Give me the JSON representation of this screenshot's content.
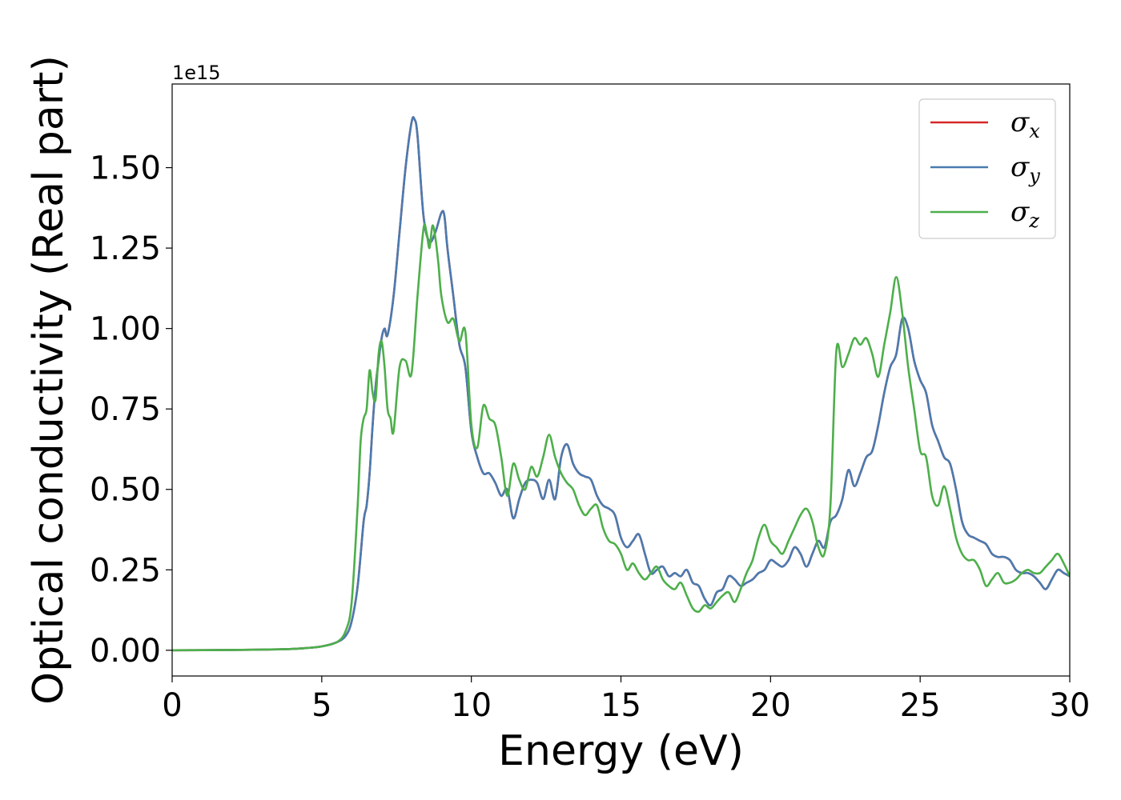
{
  "chart_data": {
    "type": "line",
    "title": "",
    "xlabel": "Energy (eV)",
    "ylabel": "Optical conductivity (Real part)",
    "offset_text": "1e15",
    "xlim": [
      0,
      30
    ],
    "ylim": [
      -0.08,
      1.76
    ],
    "x_ticks": [
      0,
      5,
      10,
      15,
      20,
      25,
      30
    ],
    "x_tick_labels": [
      "0",
      "5",
      "10",
      "15",
      "20",
      "25",
      "30"
    ],
    "y_ticks": [
      0,
      0.25,
      0.5,
      0.75,
      1.0,
      1.25,
      1.5
    ],
    "y_tick_labels": [
      "0.00",
      "0.25",
      "0.50",
      "0.75",
      "1.00",
      "1.25",
      "1.50"
    ],
    "grid": false,
    "legend_position": "top-right",
    "series": [
      {
        "name": "σ_x",
        "label_main": "σ",
        "label_sub": "x",
        "color": "#d62728",
        "x": [
          0,
          2,
          3,
          4,
          4.5,
          5,
          5.5,
          5.8,
          6,
          6.2,
          6.4,
          6.5,
          6.6,
          6.7,
          6.8,
          6.9,
          7.0,
          7.1,
          7.2,
          7.4,
          7.6,
          7.8,
          8.0,
          8.1,
          8.2,
          8.4,
          8.6,
          8.8,
          9.0,
          9.1,
          9.2,
          9.4,
          9.6,
          9.8,
          10.0,
          10.2,
          10.4,
          10.6,
          10.8,
          11.0,
          11.2,
          11.4,
          11.6,
          11.8,
          12.0,
          12.2,
          12.4,
          12.6,
          12.8,
          13.0,
          13.2,
          13.4,
          13.6,
          13.8,
          14.0,
          14.2,
          14.4,
          14.6,
          14.8,
          15.0,
          15.2,
          15.4,
          15.6,
          15.8,
          16.0,
          16.2,
          16.4,
          16.6,
          16.8,
          17.0,
          17.2,
          17.4,
          17.6,
          17.8,
          18.0,
          18.2,
          18.4,
          18.6,
          18.8,
          19.0,
          19.2,
          19.4,
          19.6,
          19.8,
          20.0,
          20.2,
          20.4,
          20.6,
          20.8,
          21.0,
          21.2,
          21.4,
          21.6,
          21.8,
          22.0,
          22.2,
          22.4,
          22.6,
          22.8,
          23.0,
          23.2,
          23.4,
          23.6,
          23.8,
          24.0,
          24.2,
          24.4,
          24.6,
          24.8,
          25.0,
          25.2,
          25.4,
          25.6,
          25.8,
          26.0,
          26.2,
          26.4,
          26.6,
          26.8,
          27.0,
          27.2,
          27.4,
          27.6,
          27.8,
          28.0,
          28.2,
          28.4,
          28.6,
          28.8,
          29.0,
          29.2,
          29.4,
          29.6,
          29.8,
          30.0
        ],
        "y": [
          0,
          0.001,
          0.002,
          0.004,
          0.007,
          0.012,
          0.025,
          0.045,
          0.09,
          0.2,
          0.4,
          0.45,
          0.55,
          0.7,
          0.82,
          0.9,
          0.97,
          1.0,
          0.98,
          1.1,
          1.3,
          1.5,
          1.64,
          1.65,
          1.6,
          1.35,
          1.27,
          1.3,
          1.36,
          1.35,
          1.25,
          1.1,
          0.95,
          0.88,
          0.68,
          0.6,
          0.55,
          0.55,
          0.52,
          0.48,
          0.5,
          0.41,
          0.47,
          0.52,
          0.53,
          0.52,
          0.47,
          0.53,
          0.47,
          0.6,
          0.64,
          0.58,
          0.55,
          0.54,
          0.53,
          0.48,
          0.45,
          0.44,
          0.42,
          0.35,
          0.32,
          0.34,
          0.36,
          0.3,
          0.24,
          0.25,
          0.26,
          0.23,
          0.24,
          0.23,
          0.25,
          0.21,
          0.2,
          0.16,
          0.14,
          0.18,
          0.19,
          0.23,
          0.22,
          0.2,
          0.21,
          0.22,
          0.24,
          0.25,
          0.28,
          0.27,
          0.26,
          0.28,
          0.32,
          0.3,
          0.26,
          0.3,
          0.34,
          0.32,
          0.4,
          0.42,
          0.47,
          0.56,
          0.51,
          0.55,
          0.6,
          0.62,
          0.7,
          0.8,
          0.88,
          0.92,
          1.03,
          1.0,
          0.9,
          0.84,
          0.8,
          0.7,
          0.65,
          0.6,
          0.58,
          0.5,
          0.4,
          0.36,
          0.35,
          0.34,
          0.33,
          0.3,
          0.29,
          0.29,
          0.28,
          0.25,
          0.24,
          0.24,
          0.23,
          0.21,
          0.19,
          0.22,
          0.25,
          0.24,
          0.23
        ]
      },
      {
        "name": "σ_y",
        "label_main": "σ",
        "label_sub": "y",
        "color": "#4a7bb0",
        "x": [
          0,
          2,
          3,
          4,
          4.5,
          5,
          5.5,
          5.8,
          6,
          6.2,
          6.4,
          6.5,
          6.6,
          6.7,
          6.8,
          6.9,
          7.0,
          7.1,
          7.2,
          7.4,
          7.6,
          7.8,
          8.0,
          8.1,
          8.2,
          8.4,
          8.6,
          8.8,
          9.0,
          9.1,
          9.2,
          9.4,
          9.6,
          9.8,
          10.0,
          10.2,
          10.4,
          10.6,
          10.8,
          11.0,
          11.2,
          11.4,
          11.6,
          11.8,
          12.0,
          12.2,
          12.4,
          12.6,
          12.8,
          13.0,
          13.2,
          13.4,
          13.6,
          13.8,
          14.0,
          14.2,
          14.4,
          14.6,
          14.8,
          15.0,
          15.2,
          15.4,
          15.6,
          15.8,
          16.0,
          16.2,
          16.4,
          16.6,
          16.8,
          17.0,
          17.2,
          17.4,
          17.6,
          17.8,
          18.0,
          18.2,
          18.4,
          18.6,
          18.8,
          19.0,
          19.2,
          19.4,
          19.6,
          19.8,
          20.0,
          20.2,
          20.4,
          20.6,
          20.8,
          21.0,
          21.2,
          21.4,
          21.6,
          21.8,
          22.0,
          22.2,
          22.4,
          22.6,
          22.8,
          23.0,
          23.2,
          23.4,
          23.6,
          23.8,
          24.0,
          24.2,
          24.4,
          24.6,
          24.8,
          25.0,
          25.2,
          25.4,
          25.6,
          25.8,
          26.0,
          26.2,
          26.4,
          26.6,
          26.8,
          27.0,
          27.2,
          27.4,
          27.6,
          27.8,
          28.0,
          28.2,
          28.4,
          28.6,
          28.8,
          29.0,
          29.2,
          29.4,
          29.6,
          29.8,
          30.0
        ],
        "y": [
          0,
          0.001,
          0.002,
          0.004,
          0.007,
          0.012,
          0.025,
          0.045,
          0.09,
          0.2,
          0.4,
          0.45,
          0.55,
          0.7,
          0.82,
          0.9,
          0.97,
          1.0,
          0.98,
          1.1,
          1.3,
          1.5,
          1.64,
          1.65,
          1.6,
          1.35,
          1.27,
          1.3,
          1.36,
          1.35,
          1.25,
          1.1,
          0.95,
          0.88,
          0.68,
          0.6,
          0.55,
          0.55,
          0.52,
          0.48,
          0.5,
          0.41,
          0.47,
          0.52,
          0.53,
          0.52,
          0.47,
          0.53,
          0.47,
          0.6,
          0.64,
          0.58,
          0.55,
          0.54,
          0.53,
          0.48,
          0.45,
          0.44,
          0.42,
          0.35,
          0.32,
          0.34,
          0.36,
          0.3,
          0.24,
          0.25,
          0.26,
          0.23,
          0.24,
          0.23,
          0.25,
          0.21,
          0.2,
          0.16,
          0.14,
          0.18,
          0.19,
          0.23,
          0.22,
          0.2,
          0.21,
          0.22,
          0.24,
          0.25,
          0.28,
          0.27,
          0.26,
          0.28,
          0.32,
          0.3,
          0.26,
          0.3,
          0.34,
          0.32,
          0.4,
          0.42,
          0.47,
          0.56,
          0.51,
          0.55,
          0.6,
          0.62,
          0.7,
          0.8,
          0.88,
          0.92,
          1.03,
          1.0,
          0.9,
          0.84,
          0.8,
          0.7,
          0.65,
          0.6,
          0.58,
          0.5,
          0.4,
          0.36,
          0.35,
          0.34,
          0.33,
          0.3,
          0.29,
          0.29,
          0.28,
          0.25,
          0.24,
          0.24,
          0.23,
          0.21,
          0.19,
          0.22,
          0.25,
          0.24,
          0.23
        ]
      },
      {
        "name": "σ_z",
        "label_main": "σ",
        "label_sub": "z",
        "color": "#4daf4a",
        "x": [
          0,
          2,
          3,
          4,
          4.5,
          5,
          5.5,
          5.8,
          6,
          6.2,
          6.3,
          6.4,
          6.5,
          6.6,
          6.7,
          6.8,
          6.9,
          7.0,
          7.1,
          7.2,
          7.3,
          7.4,
          7.6,
          7.8,
          8.0,
          8.2,
          8.4,
          8.5,
          8.6,
          8.7,
          8.8,
          8.9,
          9.0,
          9.2,
          9.4,
          9.6,
          9.8,
          10.0,
          10.2,
          10.4,
          10.6,
          10.8,
          11.0,
          11.2,
          11.4,
          11.6,
          11.8,
          12.0,
          12.2,
          12.4,
          12.6,
          12.8,
          13.0,
          13.2,
          13.4,
          13.6,
          13.8,
          14.0,
          14.2,
          14.4,
          14.6,
          14.8,
          15.0,
          15.2,
          15.4,
          15.6,
          15.8,
          16.0,
          16.2,
          16.4,
          16.6,
          16.8,
          17.0,
          17.2,
          17.4,
          17.6,
          17.8,
          18.0,
          18.2,
          18.4,
          18.6,
          18.8,
          19.0,
          19.2,
          19.4,
          19.6,
          19.8,
          20.0,
          20.2,
          20.4,
          20.6,
          20.8,
          21.0,
          21.2,
          21.4,
          21.6,
          21.8,
          22.0,
          22.2,
          22.4,
          22.6,
          22.8,
          23.0,
          23.2,
          23.4,
          23.6,
          23.8,
          24.0,
          24.2,
          24.4,
          24.6,
          24.8,
          25.0,
          25.2,
          25.4,
          25.6,
          25.8,
          26.0,
          26.2,
          26.4,
          26.6,
          26.8,
          27.0,
          27.2,
          27.4,
          27.6,
          27.8,
          28.0,
          28.2,
          28.4,
          28.6,
          28.8,
          29.0,
          29.2,
          29.4,
          29.6,
          29.8,
          30.0
        ],
        "y": [
          0,
          0.001,
          0.002,
          0.004,
          0.007,
          0.012,
          0.025,
          0.06,
          0.15,
          0.45,
          0.65,
          0.72,
          0.75,
          0.87,
          0.8,
          0.78,
          0.92,
          0.96,
          0.88,
          0.75,
          0.72,
          0.68,
          0.88,
          0.9,
          0.86,
          1.1,
          1.31,
          1.3,
          1.25,
          1.32,
          1.28,
          1.2,
          1.1,
          1.02,
          1.03,
          0.96,
          0.99,
          0.7,
          0.63,
          0.76,
          0.72,
          0.7,
          0.6,
          0.48,
          0.58,
          0.53,
          0.5,
          0.57,
          0.54,
          0.6,
          0.67,
          0.6,
          0.55,
          0.52,
          0.5,
          0.45,
          0.42,
          0.44,
          0.45,
          0.38,
          0.34,
          0.33,
          0.3,
          0.25,
          0.27,
          0.24,
          0.22,
          0.24,
          0.26,
          0.22,
          0.2,
          0.19,
          0.21,
          0.17,
          0.13,
          0.12,
          0.14,
          0.13,
          0.15,
          0.17,
          0.18,
          0.15,
          0.19,
          0.24,
          0.28,
          0.35,
          0.39,
          0.34,
          0.32,
          0.3,
          0.34,
          0.38,
          0.42,
          0.44,
          0.4,
          0.32,
          0.3,
          0.45,
          0.93,
          0.88,
          0.92,
          0.97,
          0.95,
          0.97,
          0.92,
          0.85,
          0.95,
          1.05,
          1.16,
          1.05,
          0.88,
          0.75,
          0.62,
          0.6,
          0.48,
          0.45,
          0.51,
          0.44,
          0.35,
          0.3,
          0.28,
          0.28,
          0.25,
          0.2,
          0.22,
          0.24,
          0.21,
          0.21,
          0.22,
          0.24,
          0.25,
          0.24,
          0.24,
          0.26,
          0.28,
          0.3,
          0.27,
          0.23
        ]
      }
    ]
  }
}
